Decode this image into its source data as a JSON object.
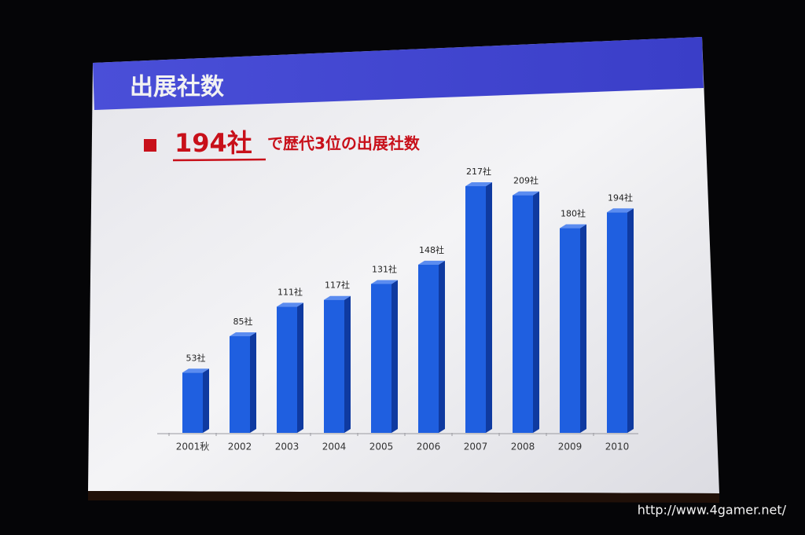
{
  "chart_data": {
    "type": "bar",
    "title": "出展社数",
    "headline_number": "194社",
    "headline_text": "で歴代3位の出展社数",
    "categories": [
      "2001秋",
      "2002",
      "2003",
      "2004",
      "2005",
      "2006",
      "2007",
      "2008",
      "2009",
      "2010"
    ],
    "values": [
      53,
      85,
      111,
      117,
      131,
      148,
      217,
      209,
      180,
      194
    ],
    "value_labels": [
      "53社",
      "85社",
      "111社",
      "117社",
      "131社",
      "148社",
      "217社",
      "209社",
      "180社",
      "194社"
    ],
    "color": "#1f5fe0"
  },
  "watermark": "http://www.4gamer.net/"
}
